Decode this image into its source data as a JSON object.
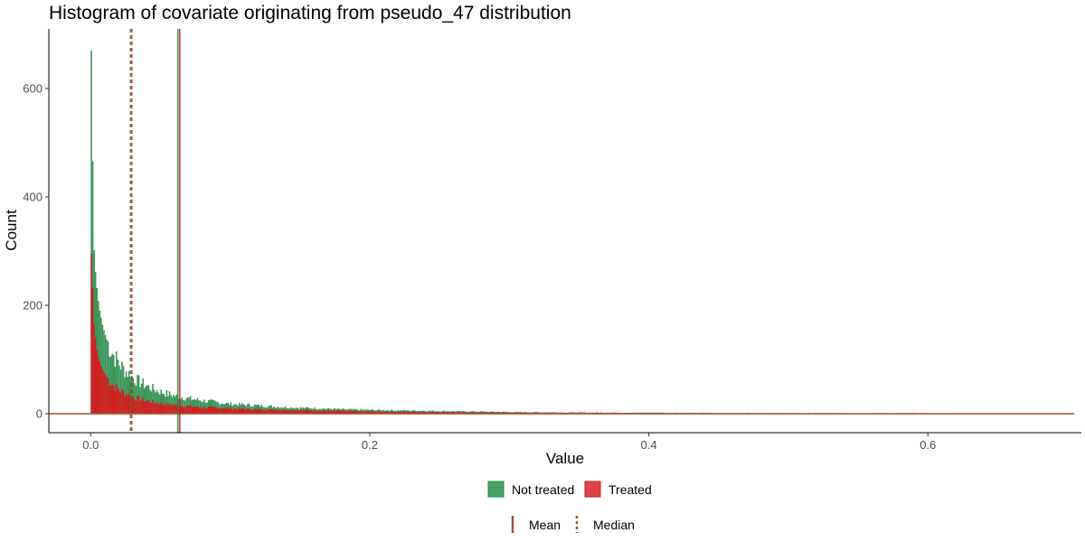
{
  "chart_data": {
    "type": "histogram",
    "title": "Histogram of covariate originating from pseudo_47 distribution",
    "xlabel": "Value",
    "ylabel": "Count",
    "xlim": [
      -0.03,
      0.71
    ],
    "ylim": [
      -35,
      710
    ],
    "x_ticks": [
      0.0,
      0.2,
      0.4,
      0.6
    ],
    "x_tick_labels": [
      "0.0",
      "0.2",
      "0.4",
      "0.6"
    ],
    "y_ticks": [
      0,
      200,
      400,
      600
    ],
    "y_tick_labels": [
      "0",
      "200",
      "400",
      "600"
    ],
    "grid": false,
    "bin_width": 0.001,
    "series": [
      {
        "name": "Not treated",
        "color": "#238b45",
        "bins": [
          [
            0.0,
            670
          ],
          [
            0.001,
            466
          ],
          [
            0.002,
            302
          ],
          [
            0.003,
            262
          ],
          [
            0.004,
            232
          ],
          [
            0.005,
            208
          ],
          [
            0.006,
            190
          ],
          [
            0.007,
            177
          ],
          [
            0.008,
            164
          ],
          [
            0.009,
            154
          ],
          [
            0.01,
            145
          ],
          [
            0.012,
            130
          ],
          [
            0.014,
            118
          ],
          [
            0.016,
            108
          ],
          [
            0.018,
            100
          ],
          [
            0.02,
            92
          ],
          [
            0.025,
            78
          ],
          [
            0.03,
            66
          ],
          [
            0.035,
            58
          ],
          [
            0.04,
            51
          ],
          [
            0.045,
            45
          ],
          [
            0.05,
            40
          ],
          [
            0.06,
            33
          ],
          [
            0.07,
            28
          ],
          [
            0.08,
            24
          ],
          [
            0.09,
            21
          ],
          [
            0.1,
            18
          ],
          [
            0.12,
            15
          ],
          [
            0.14,
            12
          ],
          [
            0.16,
            10
          ],
          [
            0.18,
            8
          ],
          [
            0.2,
            7
          ],
          [
            0.25,
            5
          ],
          [
            0.3,
            3
          ],
          [
            0.35,
            2
          ],
          [
            0.4,
            2
          ],
          [
            0.5,
            1
          ],
          [
            0.6,
            1
          ],
          [
            0.7,
            0
          ]
        ]
      },
      {
        "name": "Treated",
        "color": "#d7191c",
        "bins": [
          [
            0.0,
            295
          ],
          [
            0.001,
            232
          ],
          [
            0.002,
            165
          ],
          [
            0.003,
            140
          ],
          [
            0.004,
            118
          ],
          [
            0.005,
            104
          ],
          [
            0.006,
            95
          ],
          [
            0.007,
            88
          ],
          [
            0.008,
            82
          ],
          [
            0.009,
            77
          ],
          [
            0.01,
            72
          ],
          [
            0.012,
            64
          ],
          [
            0.014,
            58
          ],
          [
            0.016,
            52
          ],
          [
            0.018,
            48
          ],
          [
            0.02,
            44
          ],
          [
            0.025,
            37
          ],
          [
            0.03,
            31
          ],
          [
            0.035,
            27
          ],
          [
            0.04,
            24
          ],
          [
            0.045,
            21
          ],
          [
            0.05,
            19
          ],
          [
            0.06,
            16
          ],
          [
            0.07,
            14
          ],
          [
            0.08,
            12
          ],
          [
            0.09,
            11
          ],
          [
            0.1,
            10
          ],
          [
            0.12,
            8
          ],
          [
            0.14,
            7
          ],
          [
            0.16,
            6
          ],
          [
            0.18,
            5
          ],
          [
            0.2,
            4
          ],
          [
            0.25,
            3
          ],
          [
            0.3,
            2
          ],
          [
            0.35,
            2
          ],
          [
            0.4,
            1
          ],
          [
            0.5,
            1
          ],
          [
            0.6,
            1
          ],
          [
            0.7,
            0
          ]
        ]
      }
    ],
    "reference_lines": [
      {
        "label": "Mean",
        "style": "solid",
        "values": [
          0.0625,
          0.0638
        ],
        "colors": [
          "#238b45",
          "#d7191c"
        ]
      },
      {
        "label": "Median",
        "style": "dotted",
        "values": [
          0.0285,
          0.0295
        ],
        "colors": [
          "#238b45",
          "#d7191c"
        ]
      }
    ],
    "legend": {
      "placement": "bottom",
      "fill_entries": [
        "Not treated",
        "Treated"
      ],
      "line_entries": [
        "Mean",
        "Median"
      ]
    },
    "colors": {
      "not_treated": "#238b45",
      "treated": "#d7191c",
      "line_key": "#a0522d"
    }
  }
}
